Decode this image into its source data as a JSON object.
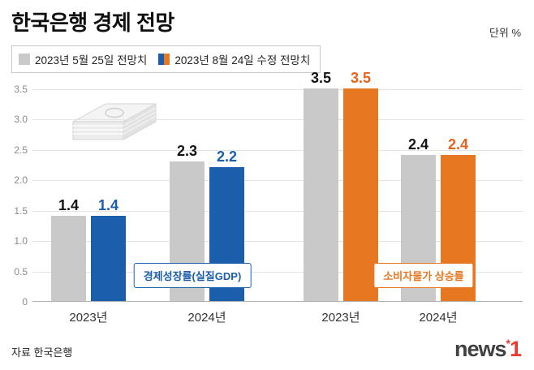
{
  "header": {
    "title": "한국은행 경제 전망",
    "unit_label": "단위 %"
  },
  "legend": {
    "items": [
      {
        "label": "2023년 5월 25일 전망치",
        "colors": [
          "#c9c9c9"
        ]
      },
      {
        "label": "2023년 8월 24일 수정 전망치",
        "colors": [
          "#1b5eac",
          "#e87722"
        ]
      }
    ]
  },
  "chart_data": {
    "type": "bar",
    "title": "한국은행 경제 전망",
    "unit": "%",
    "ylim": [
      0,
      3.5
    ],
    "grid": true,
    "legend_position": "top-left",
    "y_ticks": [
      {
        "value": 3.5,
        "label": "3.5"
      },
      {
        "value": 3.0,
        "label": "3.0"
      },
      {
        "value": 2.5,
        "label": "2.5"
      },
      {
        "value": 2.0,
        "label": "2.0"
      },
      {
        "value": 1.5,
        "label": "1.5"
      },
      {
        "value": 1.0,
        "label": "1.0"
      },
      {
        "value": 0.5,
        "label": "0.5"
      },
      {
        "value": 0,
        "label": "0"
      }
    ],
    "series_names": [
      "2023년 5월 25일 전망치",
      "2023년 8월 24일 수정 전망치"
    ],
    "sections": [
      {
        "label": "경제성장률(실질GDP)",
        "accent": "#1b5eac"
      },
      {
        "label": "소비자물가 상승률",
        "accent": "#e87722"
      }
    ],
    "groups": [
      {
        "section": 0,
        "category": "2023년",
        "bars": [
          {
            "series": "2023년 5월 25일 전망치",
            "value": 1.4,
            "display": "1.4",
            "color": "#c9c9c9",
            "value_color": "#141414"
          },
          {
            "series": "2023년 8월 24일 수정 전망치",
            "value": 1.4,
            "display": "1.4",
            "color": "#1b5eac",
            "value_color": "#1b5eac"
          }
        ]
      },
      {
        "section": 0,
        "category": "2024년",
        "bars": [
          {
            "series": "2023년 5월 25일 전망치",
            "value": 2.3,
            "display": "2.3",
            "color": "#c9c9c9",
            "value_color": "#141414"
          },
          {
            "series": "2023년 8월 24일 수정 전망치",
            "value": 2.2,
            "display": "2.2",
            "color": "#1b5eac",
            "value_color": "#1b5eac"
          }
        ]
      },
      {
        "section": 1,
        "category": "2023년",
        "bars": [
          {
            "series": "2023년 5월 25일 전망치",
            "value": 3.5,
            "display": "3.5",
            "color": "#c9c9c9",
            "value_color": "#141414"
          },
          {
            "series": "2023년 8월 24일 수정 전망치",
            "value": 3.5,
            "display": "3.5",
            "color": "#e87722",
            "value_color": "#e8621d"
          }
        ]
      },
      {
        "section": 1,
        "category": "2024년",
        "bars": [
          {
            "series": "2023년 5월 25일 전망치",
            "value": 2.4,
            "display": "2.4",
            "color": "#c9c9c9",
            "value_color": "#141414"
          },
          {
            "series": "2023년 8월 24일 수정 전망치",
            "value": 2.4,
            "display": "2.4",
            "color": "#e87722",
            "value_color": "#e8621d"
          }
        ]
      }
    ]
  },
  "footer": {
    "source": "자료 한국은행",
    "logo_text": "news",
    "logo_number": "1"
  }
}
